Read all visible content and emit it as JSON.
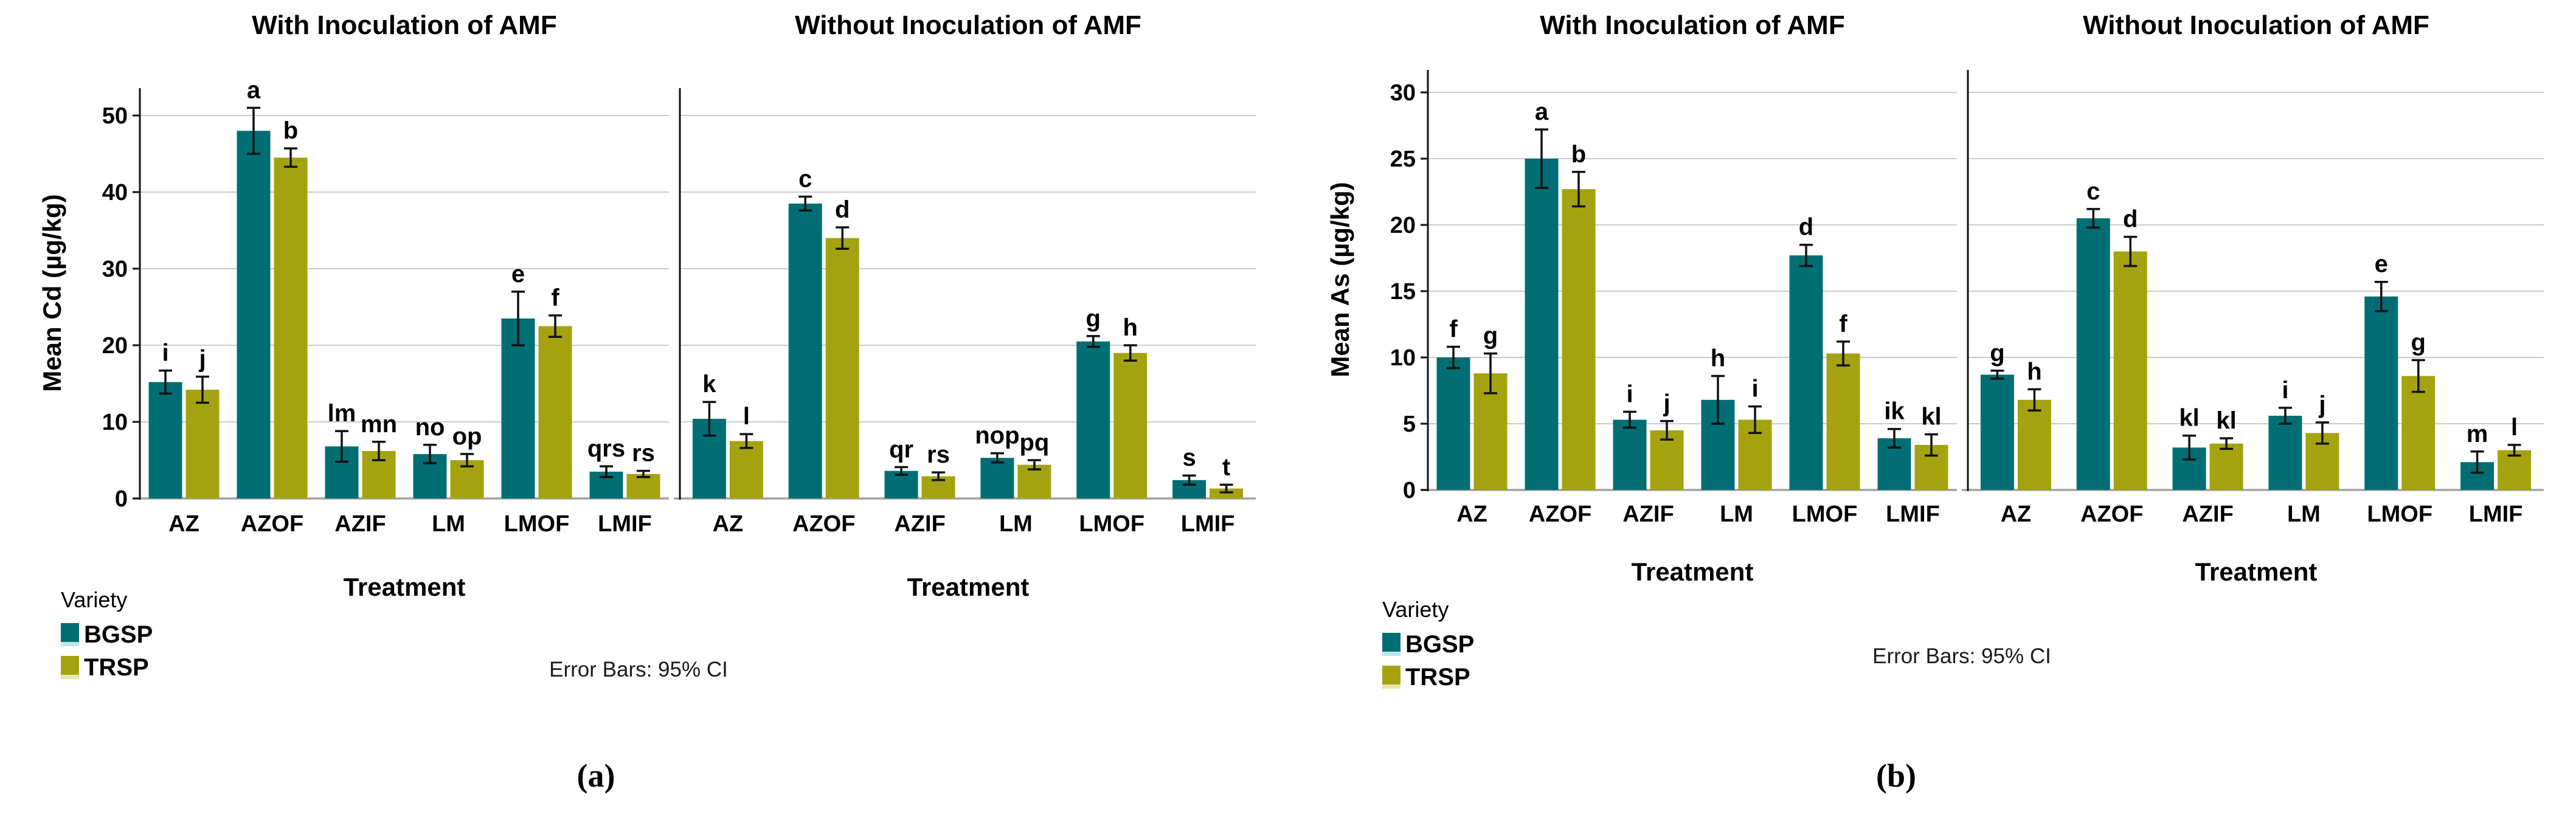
{
  "colors": {
    "BGSP": "#016E73",
    "TRSP": "#A4A30F",
    "BGSP_light": "#BCE6E8",
    "TRSP_light": "#E6E7B2",
    "gridline": "#CBCBCB",
    "baseline": "#A3A3A3",
    "axis": "#111111"
  },
  "chart_data": [
    {
      "id": "a",
      "type": "bar",
      "caption": "(a)",
      "ylabel": "Mean Cd (µg/kg)",
      "xlabel": "Treatment",
      "error_note": "Error Bars: 95% CI",
      "legend": {
        "title": "Variety",
        "items": [
          {
            "label": "BGSP",
            "color": "#016E73"
          },
          {
            "label": "TRSP",
            "color": "#A4A30F"
          }
        ]
      },
      "categories": [
        "AZ",
        "AZOF",
        "AZIF",
        "LM",
        "LMOF",
        "LMIF"
      ],
      "yticks": [
        0,
        10,
        20,
        30,
        40,
        50
      ],
      "ylim": [
        0,
        53.5
      ],
      "grid": true,
      "legend_position": "bottom-left",
      "panels": [
        {
          "title": "With Inoculation of AMF",
          "series": [
            {
              "name": "BGSP",
              "values": [
                15.2,
                48.0,
                6.8,
                5.8,
                23.5,
                3.5
              ],
              "ci": [
                1.5,
                3.0,
                2.0,
                1.2,
                3.5,
                0.7
              ],
              "letters": [
                "i",
                "a",
                "lm",
                "no",
                "e",
                "qrs"
              ]
            },
            {
              "name": "TRSP",
              "values": [
                14.2,
                44.5,
                6.2,
                5.0,
                22.5,
                3.2
              ],
              "ci": [
                1.7,
                1.2,
                1.2,
                0.8,
                1.4,
                0.4
              ],
              "letters": [
                "j",
                "b",
                "mn",
                "op",
                "f",
                "rs"
              ]
            }
          ]
        },
        {
          "title": "Without Inoculation of AMF",
          "series": [
            {
              "name": "BGSP",
              "values": [
                10.4,
                38.5,
                3.6,
                5.3,
                20.5,
                2.4
              ],
              "ci": [
                2.2,
                0.9,
                0.5,
                0.6,
                0.7,
                0.6
              ],
              "letters": [
                "k",
                "c",
                "qr",
                "nop",
                "g",
                "s"
              ]
            },
            {
              "name": "TRSP",
              "values": [
                7.5,
                34.0,
                2.9,
                4.4,
                19.0,
                1.3
              ],
              "ci": [
                0.9,
                1.4,
                0.5,
                0.6,
                1.0,
                0.5
              ],
              "letters": [
                "l",
                "d",
                "rs",
                "pq",
                "h",
                "t"
              ]
            }
          ]
        }
      ]
    },
    {
      "id": "b",
      "type": "bar",
      "caption": "(b)",
      "ylabel": "Mean As (µg/kg)",
      "xlabel": "Treatment",
      "error_note": "Error Bars: 95% CI",
      "legend": {
        "title": "Variety",
        "items": [
          {
            "label": "BGSP",
            "color": "#016E73"
          },
          {
            "label": "TRSP",
            "color": "#A4A30F"
          }
        ]
      },
      "categories": [
        "AZ",
        "AZOF",
        "AZIF",
        "LM",
        "LMOF",
        "LMIF"
      ],
      "yticks": [
        0,
        5,
        10,
        15,
        20,
        25,
        30
      ],
      "ylim": [
        0,
        32
      ],
      "grid": true,
      "legend_position": "bottom-left",
      "panels": [
        {
          "title": "With Inoculation of AMF",
          "series": [
            {
              "name": "BGSP",
              "values": [
                10.0,
                25.0,
                5.3,
                6.8,
                17.7,
                3.9
              ],
              "ci": [
                0.8,
                2.2,
                0.6,
                1.8,
                0.8,
                0.7
              ],
              "letters": [
                "f",
                "a",
                "i",
                "h",
                "d",
                "ik"
              ]
            },
            {
              "name": "TRSP",
              "values": [
                8.8,
                22.7,
                4.5,
                5.3,
                10.3,
                3.4
              ],
              "ci": [
                1.5,
                1.3,
                0.7,
                1.0,
                0.9,
                0.8
              ],
              "letters": [
                "g",
                "b",
                "j",
                "i",
                "f",
                "kl"
              ]
            }
          ]
        },
        {
          "title": "Without Inoculation of AMF",
          "series": [
            {
              "name": "BGSP",
              "values": [
                8.7,
                20.5,
                3.2,
                5.6,
                14.6,
                2.1
              ],
              "ci": [
                0.3,
                0.7,
                0.9,
                0.6,
                1.1,
                0.8
              ],
              "letters": [
                "g",
                "c",
                "kl",
                "i",
                "e",
                "m"
              ]
            },
            {
              "name": "TRSP",
              "values": [
                6.8,
                18.0,
                3.5,
                4.3,
                8.6,
                3.0
              ],
              "ci": [
                0.8,
                1.1,
                0.4,
                0.8,
                1.2,
                0.4
              ],
              "letters": [
                "h",
                "d",
                "kl",
                "j",
                "g",
                "l"
              ]
            }
          ]
        }
      ]
    }
  ]
}
